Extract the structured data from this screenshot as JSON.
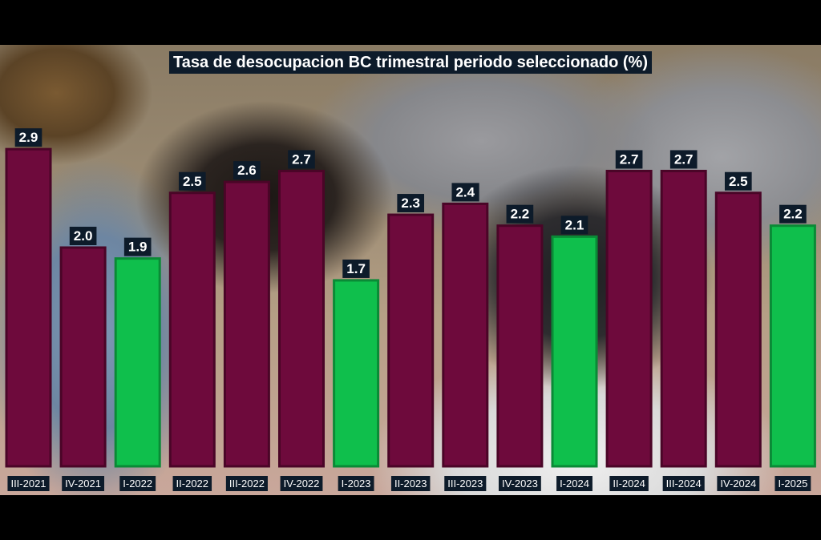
{
  "chart_data": {
    "type": "bar",
    "title": "Tasa de desocupacion BC trimestral periodo seleccionado (%)",
    "xlabel": "",
    "ylabel": "",
    "categories": [
      "III-2021",
      "IV-2021",
      "I-2022",
      "II-2022",
      "III-2022",
      "IV-2022",
      "I-2023",
      "II-2023",
      "III-2023",
      "IV-2023",
      "I-2024",
      "II-2024",
      "III-2024",
      "IV-2024",
      "I-2025"
    ],
    "values": [
      "2.9",
      "2.0",
      "1.9",
      "2.5",
      "2.6",
      "2.7",
      "1.7",
      "2.3",
      "2.4",
      "2.2",
      "2.1",
      "2.7",
      "2.7",
      "2.5",
      "2.2"
    ],
    "highlight": [
      false,
      false,
      true,
      false,
      false,
      false,
      true,
      false,
      false,
      false,
      true,
      false,
      false,
      false,
      true
    ],
    "ylim": [
      0,
      2.9
    ],
    "grid": false,
    "legend": "none",
    "colors": {
      "bar": "#6e0a3c",
      "bar_stroke": "#4a0527",
      "highlight": "#0fbf4c",
      "highlight_stroke": "#0a8a36",
      "label_background": "#0d1b2a",
      "label_text": "#ffffff"
    }
  }
}
